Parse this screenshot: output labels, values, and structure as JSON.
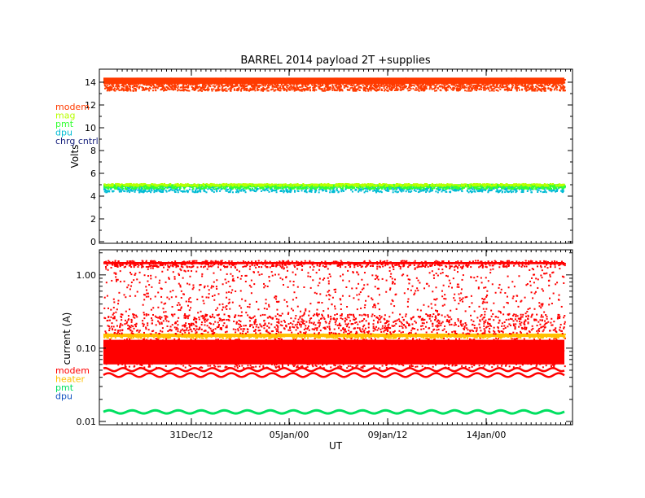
{
  "title": "BARREL 2014 payload 2T +supplies",
  "xlabel": "UT",
  "x_ticks": [
    "31Dec/12",
    "05Jan/00",
    "09Jan/12",
    "14Jan/00"
  ],
  "chart_data": [
    {
      "type": "scatter",
      "title": "BARREL 2014 payload 2T +supplies",
      "ylabel": "Volts",
      "xlabel": "",
      "ylim": [
        0,
        15
      ],
      "y_ticks": [
        "0",
        "2",
        "4",
        "6",
        "8",
        "10",
        "12",
        "14"
      ],
      "grid": false,
      "legend_position": "left",
      "series": [
        {
          "name": "modem",
          "color": "#ff3b00",
          "min": 13.3,
          "max": 14.4,
          "typical": 14.1
        },
        {
          "name": "mag",
          "color": "#b8ff00",
          "min": 4.75,
          "max": 5.15,
          "typical": 5.0
        },
        {
          "name": "pmt",
          "color": "#33ff33",
          "min": 4.7,
          "max": 5.1,
          "typical": 4.95
        },
        {
          "name": "dpu",
          "color": "#00bcd4",
          "min": 4.4,
          "max": 4.9,
          "typical": 4.7
        },
        {
          "name": "chrg cntrl",
          "color": "#1a237e",
          "min": null,
          "max": null,
          "typical": null
        }
      ]
    },
    {
      "type": "scatter",
      "title": "",
      "ylabel": "current (A)",
      "xlabel": "UT",
      "y_scale": "log",
      "ylim": [
        0.009,
        2.2
      ],
      "y_ticks": [
        "0.01",
        "0.10",
        "1.00"
      ],
      "grid": false,
      "legend_position": "left",
      "series": [
        {
          "name": "modem",
          "color": "#ff0000",
          "min": 0.04,
          "max": 1.6,
          "typical": 0.08
        },
        {
          "name": "heater",
          "color": "#ffc000",
          "min": 0.14,
          "max": 0.16,
          "typical": 0.15
        },
        {
          "name": "pmt",
          "color": "#00e060",
          "min": 0.013,
          "max": 0.014,
          "typical": 0.0135
        },
        {
          "name": "dpu",
          "color": "#1050c0",
          "min": null,
          "max": null,
          "typical": null
        }
      ]
    }
  ]
}
